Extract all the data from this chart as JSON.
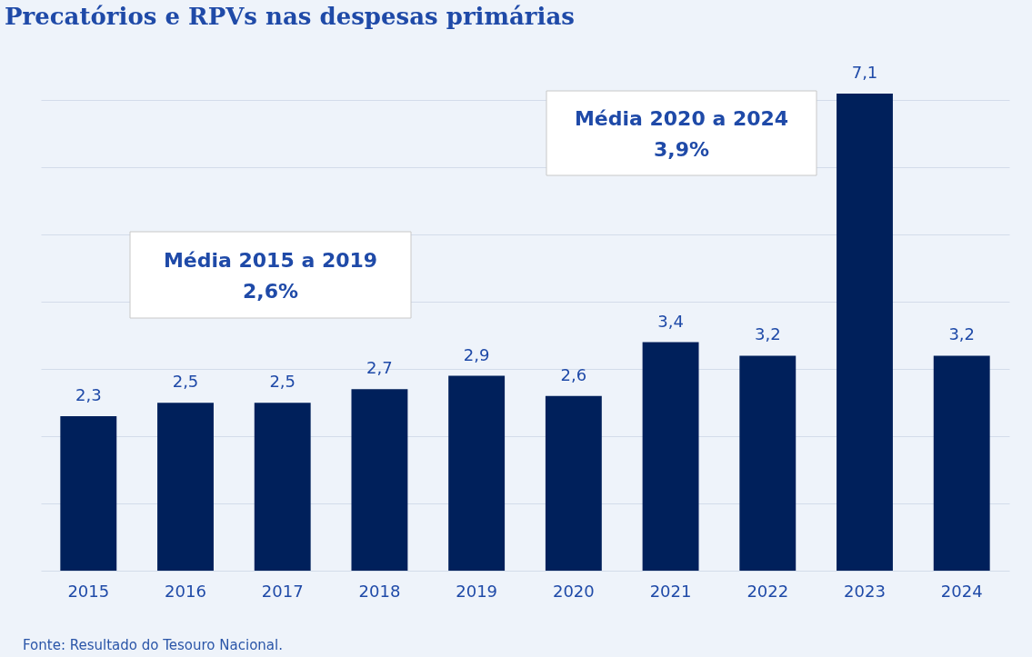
{
  "chart_data": {
    "type": "bar",
    "title": "Precatórios e RPVs nas despesas primárias",
    "categories": [
      "2015",
      "2016",
      "2017",
      "2018",
      "2019",
      "2020",
      "2021",
      "2022",
      "2023",
      "2024"
    ],
    "values": [
      2.3,
      2.5,
      2.5,
      2.7,
      2.9,
      2.6,
      3.4,
      3.2,
      7.1,
      3.2
    ],
    "value_labels": [
      "2,3",
      "2,5",
      "2,5",
      "2,7",
      "2,9",
      "2,6",
      "3,4",
      "3,2",
      "7,1",
      "3,2"
    ],
    "color": "#00205b",
    "yticks": [
      {
        "value": 0,
        "label": null
      },
      {
        "value": 1,
        "label": null
      },
      {
        "value": 2,
        "label": null
      },
      {
        "value": 3,
        "label": null
      },
      {
        "value": 4,
        "label": null
      },
      {
        "value": 5,
        "label": null
      },
      {
        "value": 6,
        "label": null
      },
      {
        "value": 7,
        "label": null
      }
    ],
    "tick_labels": "x",
    "grid": "y",
    "annotations": [
      "Média 2015 a 2019\n2,6%",
      "Média 2020 a 2024\n3,9%",
      "Fonte: Resultado do Tesouro Nacional."
    ]
  }
}
